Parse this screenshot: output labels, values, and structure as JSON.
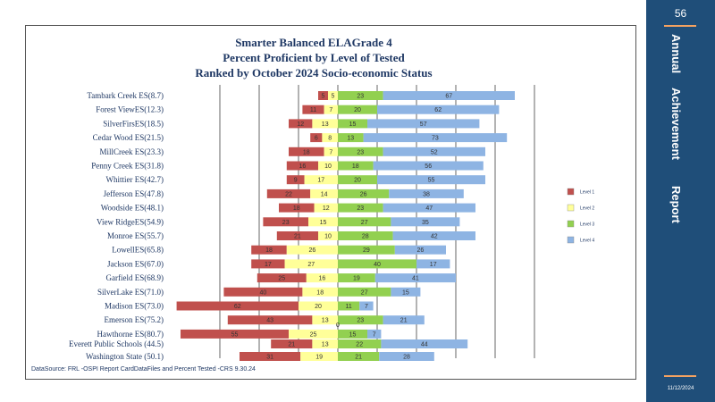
{
  "page_number": "56",
  "sidebar": {
    "title_words": [
      "Annual",
      "Achievement",
      "Report"
    ],
    "date": "11/12/2024"
  },
  "chart_data": {
    "type": "bar",
    "stacked": "diverging",
    "title": [
      "Smarter Balanced ELAGrade 4",
      "Percent Proficient by Level of Tested",
      "Ranked by October 2024 Socio-economic  Status"
    ],
    "source": "DataSource:  FRL  -OSPI  Report CardDataFiles  and  Percent Tested      -CRS  9.30.24",
    "legend": [
      "Level 1",
      "Level 2",
      "Level 3",
      "Level 4"
    ],
    "colors": {
      "level1": "#c0504d",
      "level2": "#ffff99",
      "level3": "#92d050",
      "level4": "#8eb4e3"
    },
    "zero_label": "0",
    "categories": [
      "Tambark Creek ES(8.7)",
      "Forest ViewES(12.3)",
      "SilverFirsES(18.5)",
      "Cedar Wood ES(21.5)",
      "MillCreek ES(23.3)",
      "Penny Creek ES(31.8)",
      "Whittier ES(42.7)",
      "Jefferson   ES(47.8)",
      "Woodside ES(48.1)",
      "View RidgeES(54.9)",
      "Monroe  ES(55.7)",
      "LowellES(65.8)",
      "Jackson ES(67.0)",
      "Garfield  ES(68.9)",
      "SilverLake ES(71.0)",
      "Madison ES(73.0)",
      "Emerson ES(75.2)",
      "Hawthorne  ES(80.7)",
      "Everett  Public Schools (44.5)",
      "Washington State  (50.1)"
    ],
    "series": [
      {
        "name": "Level 1",
        "values": [
          5,
          11,
          12,
          6,
          18,
          16,
          9,
          22,
          18,
          23,
          21,
          18,
          17,
          25,
          40,
          62,
          43,
          55,
          21,
          31
        ]
      },
      {
        "name": "Level 2",
        "values": [
          5,
          7,
          13,
          8,
          7,
          10,
          17,
          14,
          12,
          15,
          10,
          26,
          27,
          16,
          18,
          20,
          13,
          25,
          13,
          19
        ]
      },
      {
        "name": "Level 3",
        "values": [
          23,
          20,
          15,
          13,
          23,
          18,
          20,
          26,
          23,
          27,
          28,
          29,
          40,
          19,
          27,
          11,
          23,
          15,
          22,
          21
        ]
      },
      {
        "name": "Level 4",
        "values": [
          67,
          62,
          57,
          73,
          52,
          56,
          55,
          38,
          47,
          35,
          42,
          26,
          17,
          41,
          15,
          7,
          21,
          7,
          44,
          28
        ]
      }
    ]
  }
}
